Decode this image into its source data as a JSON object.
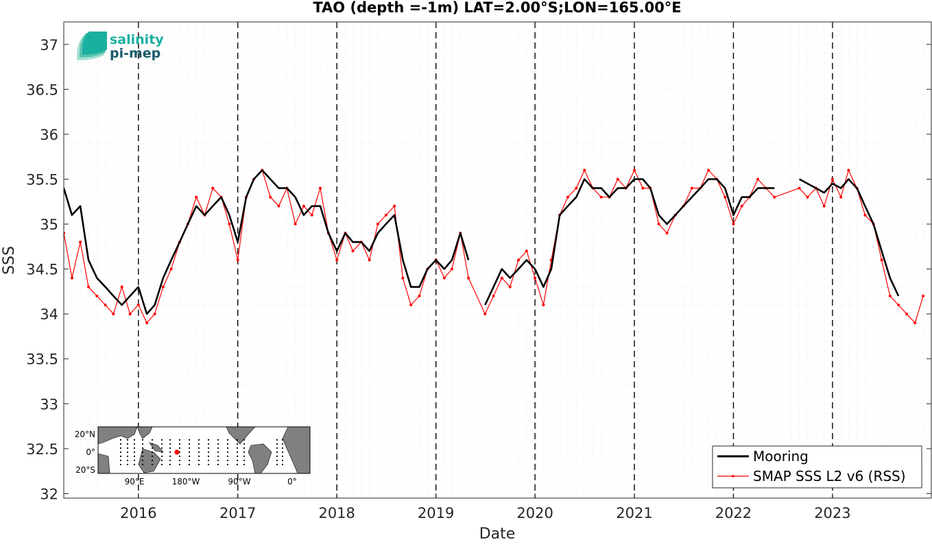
{
  "chart_data": {
    "type": "line",
    "title": "TAO (depth =-1m) LAT=2.00°S;LON=165.00°E",
    "xlabel": "Date",
    "ylabel": "SSS",
    "xlim": [
      "2015-04-01",
      "2023-12-31"
    ],
    "ylim": [
      31.95,
      37.25
    ],
    "x_ticks": [
      "2016",
      "2017",
      "2018",
      "2019",
      "2020",
      "2021",
      "2022",
      "2023"
    ],
    "y_ticks": [
      "32",
      "32.5",
      "33",
      "33.5",
      "34",
      "34.5",
      "35",
      "35.5",
      "36",
      "36.5",
      "37"
    ],
    "grid": true,
    "year_boundaries_dashed": true,
    "legend_position": "bottom-right",
    "series": [
      {
        "name": "Mooring",
        "color": "#000000",
        "style": "thick line",
        "segments": [
          {
            "x": [
              "2015-04-01",
              "2015-05-01",
              "2015-06-01",
              "2015-07-01",
              "2015-08-01",
              "2015-09-01",
              "2015-10-01",
              "2015-11-01",
              "2015-12-01",
              "2016-01-01",
              "2016-02-01",
              "2016-03-01",
              "2016-04-01",
              "2016-05-01",
              "2016-06-01",
              "2016-07-01",
              "2016-08-01",
              "2016-09-01",
              "2016-10-01",
              "2016-11-01",
              "2016-12-01",
              "2017-01-01",
              "2017-02-01",
              "2017-03-01",
              "2017-04-01",
              "2017-05-01",
              "2017-06-01",
              "2017-07-01",
              "2017-08-01",
              "2017-09-01",
              "2017-10-01",
              "2017-11-01",
              "2017-12-01",
              "2018-01-01",
              "2018-02-01",
              "2018-03-01",
              "2018-04-01",
              "2018-05-01",
              "2018-06-01",
              "2018-07-01",
              "2018-08-01",
              "2018-09-01",
              "2018-10-01",
              "2018-11-01",
              "2018-12-01",
              "2019-01-01",
              "2019-02-01",
              "2019-03-01",
              "2019-04-01",
              "2019-05-01"
            ],
            "y": [
              35.4,
              35.1,
              35.2,
              34.6,
              34.4,
              34.3,
              34.2,
              34.1,
              34.2,
              34.3,
              34.0,
              34.1,
              34.4,
              34.6,
              34.8,
              35.0,
              35.2,
              35.1,
              35.2,
              35.3,
              35.1,
              34.8,
              35.3,
              35.5,
              35.6,
              35.5,
              35.4,
              35.4,
              35.3,
              35.1,
              35.2,
              35.2,
              34.9,
              34.7,
              34.9,
              34.8,
              34.8,
              34.7,
              34.9,
              35.0,
              35.1,
              34.6,
              34.3,
              34.3,
              34.5,
              34.6,
              34.5,
              34.6,
              34.9,
              34.6
            ]
          },
          {
            "x": [
              "2019-07-01",
              "2019-08-01",
              "2019-09-01",
              "2019-10-01",
              "2019-11-01",
              "2019-12-01",
              "2020-01-01",
              "2020-02-01",
              "2020-03-01",
              "2020-04-01",
              "2020-05-01",
              "2020-06-01",
              "2020-07-01",
              "2020-08-01",
              "2020-09-01",
              "2020-10-01",
              "2020-11-01",
              "2020-12-01",
              "2021-01-01",
              "2021-02-01",
              "2021-03-01",
              "2021-04-01",
              "2021-05-01",
              "2021-06-01",
              "2021-07-01",
              "2021-08-01",
              "2021-09-01",
              "2021-10-01",
              "2021-11-01",
              "2021-12-01",
              "2022-01-01",
              "2022-02-01",
              "2022-03-01",
              "2022-04-01",
              "2022-05-01",
              "2022-06-01"
            ],
            "y": [
              34.1,
              34.3,
              34.5,
              34.4,
              34.5,
              34.6,
              34.5,
              34.3,
              34.5,
              35.1,
              35.2,
              35.3,
              35.5,
              35.4,
              35.4,
              35.3,
              35.4,
              35.4,
              35.5,
              35.5,
              35.4,
              35.1,
              35.0,
              35.1,
              35.2,
              35.3,
              35.4,
              35.5,
              35.5,
              35.4,
              35.1,
              35.3,
              35.3,
              35.4,
              35.4,
              35.4
            ]
          },
          {
            "x": [
              "2022-09-01",
              "2022-10-01",
              "2022-11-01",
              "2022-12-01",
              "2023-01-01",
              "2023-02-01",
              "2023-03-01",
              "2023-04-01",
              "2023-05-01",
              "2023-06-01",
              "2023-07-01",
              "2023-08-01",
              "2023-09-01"
            ],
            "y": [
              35.5,
              35.45,
              35.4,
              35.35,
              35.45,
              35.4,
              35.5,
              35.4,
              35.2,
              35.0,
              34.7,
              34.4,
              34.2
            ]
          }
        ]
      },
      {
        "name": "SMAP SSS L2 v6 (RSS)",
        "color": "#ff0000",
        "style": "thin line with dot markers",
        "x": [
          "2015-04-01",
          "2015-05-01",
          "2015-06-01",
          "2015-07-01",
          "2015-08-01",
          "2015-09-01",
          "2015-10-01",
          "2015-11-01",
          "2015-12-01",
          "2016-01-01",
          "2016-02-01",
          "2016-03-01",
          "2016-04-01",
          "2016-05-01",
          "2016-06-01",
          "2016-07-01",
          "2016-08-01",
          "2016-09-01",
          "2016-10-01",
          "2016-11-01",
          "2016-12-01",
          "2017-01-01",
          "2017-02-01",
          "2017-03-01",
          "2017-04-01",
          "2017-05-01",
          "2017-06-01",
          "2017-07-01",
          "2017-08-01",
          "2017-09-01",
          "2017-10-01",
          "2017-11-01",
          "2017-12-01",
          "2018-01-01",
          "2018-02-01",
          "2018-03-01",
          "2018-04-01",
          "2018-05-01",
          "2018-06-01",
          "2018-07-01",
          "2018-08-01",
          "2018-09-01",
          "2018-10-01",
          "2018-11-01",
          "2018-12-01",
          "2019-01-01",
          "2019-02-01",
          "2019-03-01",
          "2019-04-01",
          "2019-05-01",
          "2019-07-01",
          "2019-08-01",
          "2019-09-01",
          "2019-10-01",
          "2019-11-01",
          "2019-12-01",
          "2020-01-01",
          "2020-02-01",
          "2020-03-01",
          "2020-04-01",
          "2020-05-01",
          "2020-06-01",
          "2020-07-01",
          "2020-08-01",
          "2020-09-01",
          "2020-10-01",
          "2020-11-01",
          "2020-12-01",
          "2021-01-01",
          "2021-02-01",
          "2021-03-01",
          "2021-04-01",
          "2021-05-01",
          "2021-06-01",
          "2021-07-01",
          "2021-08-01",
          "2021-09-01",
          "2021-10-01",
          "2021-11-01",
          "2021-12-01",
          "2022-01-01",
          "2022-02-01",
          "2022-03-01",
          "2022-04-01",
          "2022-05-01",
          "2022-06-01",
          "2022-09-01",
          "2022-10-01",
          "2022-11-01",
          "2022-12-01",
          "2023-01-01",
          "2023-02-01",
          "2023-03-01",
          "2023-04-01",
          "2023-05-01",
          "2023-06-01",
          "2023-07-01",
          "2023-08-01",
          "2023-09-01",
          "2023-10-01",
          "2023-11-01",
          "2023-12-01"
        ],
        "y": [
          34.9,
          34.4,
          34.8,
          34.3,
          34.2,
          34.1,
          34.0,
          34.3,
          34.0,
          34.1,
          33.9,
          34.0,
          34.3,
          34.5,
          34.8,
          35.0,
          35.3,
          35.1,
          35.4,
          35.3,
          35.0,
          34.6,
          35.3,
          35.5,
          35.6,
          35.3,
          35.2,
          35.4,
          35.0,
          35.2,
          35.1,
          35.4,
          34.9,
          34.6,
          34.9,
          34.7,
          34.8,
          34.6,
          35.0,
          35.1,
          35.2,
          34.4,
          34.1,
          34.2,
          34.5,
          34.6,
          34.4,
          34.5,
          34.9,
          34.4,
          34.0,
          34.2,
          34.4,
          34.3,
          34.6,
          34.7,
          34.4,
          34.1,
          34.6,
          35.1,
          35.3,
          35.4,
          35.6,
          35.4,
          35.3,
          35.3,
          35.5,
          35.4,
          35.6,
          35.4,
          35.4,
          35.0,
          34.9,
          35.1,
          35.2,
          35.4,
          35.4,
          35.6,
          35.5,
          35.3,
          35.0,
          35.2,
          35.3,
          35.5,
          35.4,
          35.3,
          35.4,
          35.3,
          35.4,
          35.2,
          35.5,
          35.3,
          35.6,
          35.4,
          35.1,
          35.0,
          34.6,
          34.2,
          34.1,
          34.0,
          33.9,
          34.2
        ]
      }
    ]
  },
  "logo": {
    "line1": "salinity",
    "line2": "pi-mep",
    "color1": "#1ab0a0",
    "color2": "#1a5a6a"
  },
  "inset_map": {
    "lat_labels": [
      "20°N",
      "0°",
      "20°S"
    ],
    "lon_labels": [
      "90°E",
      "180°W",
      "90°W",
      "0°"
    ],
    "station_marker_color": "#ff0000",
    "land_color": "#808080"
  },
  "legend": {
    "items": [
      {
        "label": "Mooring",
        "color": "#000000"
      },
      {
        "label": "SMAP SSS L2 v6 (RSS)",
        "color": "#ff0000"
      }
    ]
  }
}
